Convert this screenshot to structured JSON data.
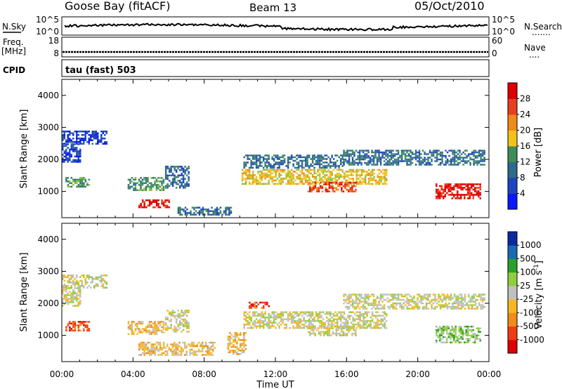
{
  "header": {
    "station": "Goose Bay (fitACF)",
    "beam": "Beam 13",
    "date": "05/Oct/2010"
  },
  "panels": {
    "nsky": {
      "label": "N.Sky",
      "ticks": [
        "10^5",
        "10^0"
      ]
    },
    "nsearch": {
      "label": "N.Search",
      "dots": "......."
    },
    "freq": {
      "label_line1": "Freq.",
      "label_line2": "[MHz]",
      "ticks": [
        "18",
        "8"
      ]
    },
    "nave": {
      "label": "Nave",
      "dots": "....",
      "ticks": [
        "60",
        "0"
      ]
    },
    "cpid": {
      "label": "CPID",
      "value": "tau (fast) 503"
    }
  },
  "colors": {
    "power": [
      "#0a18ff",
      "#1f44c0",
      "#2f6a8a",
      "#3d8c5a",
      "#8cc23a",
      "#f2c21a",
      "#f08a1a",
      "#e8401e",
      "#e00000"
    ],
    "velocity": [
      "#e00000",
      "#f03c14",
      "#f08c1a",
      "#f5b820",
      "#c0c0c0",
      "#8fcf3f",
      "#2aa02a",
      "#1a6ab2",
      "#0a2aa0"
    ],
    "gray": "#c0c0c0"
  },
  "chart_data": [
    {
      "type": "heatmap",
      "name": "power",
      "xlabel": "",
      "ylabel": "Slant Range [km]",
      "xlim": [
        0,
        24
      ],
      "ylim": [
        180,
        4500
      ],
      "yticks": [
        "1000",
        "2000",
        "3000",
        "4000"
      ],
      "colorbar": {
        "label": "Power [dB]",
        "ticks": [
          "4",
          "8",
          "12",
          "16",
          "20",
          "24",
          "28"
        ]
      },
      "regions": [
        {
          "t0": 0.0,
          "t1": 2.5,
          "r0": 2500,
          "r1": 2900,
          "level": 1
        },
        {
          "t0": 0.0,
          "t1": 1.0,
          "r0": 1900,
          "r1": 2500,
          "level": 1
        },
        {
          "t0": 0.2,
          "t1": 1.5,
          "r0": 1150,
          "r1": 1450,
          "level": 3
        },
        {
          "t0": 3.7,
          "t1": 5.7,
          "r0": 1050,
          "r1": 1450,
          "level": 3
        },
        {
          "t0": 4.3,
          "t1": 6.0,
          "r0": 500,
          "r1": 750,
          "level": 8
        },
        {
          "t0": 5.8,
          "t1": 7.1,
          "r0": 1100,
          "r1": 1800,
          "level": 2
        },
        {
          "t0": 10.1,
          "t1": 18.2,
          "r0": 1250,
          "r1": 1700,
          "level": 5
        },
        {
          "t0": 13.8,
          "t1": 16.5,
          "r0": 1000,
          "r1": 1300,
          "level": 7
        },
        {
          "t0": 10.2,
          "t1": 15.8,
          "r0": 1750,
          "r1": 2150,
          "level": 2
        },
        {
          "t0": 15.8,
          "t1": 23.7,
          "r0": 1850,
          "r1": 2300,
          "level": 2
        },
        {
          "t0": 21.0,
          "t1": 23.5,
          "r0": 800,
          "r1": 1250,
          "level": 8
        },
        {
          "t0": 6.5,
          "t1": 9.5,
          "r0": 280,
          "r1": 520,
          "level": 2
        }
      ]
    },
    {
      "type": "heatmap",
      "name": "velocity",
      "xlabel": "Time UT",
      "ylabel": "Slant Range [km]",
      "xlim": [
        0,
        24
      ],
      "ylim": [
        180,
        4500
      ],
      "xticks": [
        "00:00",
        "04:00",
        "08:00",
        "12:00",
        "16:00",
        "20:00",
        "00:00"
      ],
      "yticks": [
        "1000",
        "2000",
        "3000",
        "4000"
      ],
      "colorbar": {
        "label": "Velocity [m s",
        "label_exp": "-1",
        "label_end": "]",
        "ticks": [
          "1000",
          "500",
          "100",
          "25",
          "-25",
          "-100",
          "-500",
          "-1000"
        ]
      },
      "regions": [
        {
          "t0": 0.0,
          "t1": 2.5,
          "r0": 2500,
          "r1": 2900,
          "level": 4
        },
        {
          "t0": 0.0,
          "t1": 1.0,
          "r0": 1900,
          "r1": 2500,
          "level": 4
        },
        {
          "t0": 0.2,
          "t1": 1.5,
          "r0": 1150,
          "r1": 1450,
          "level": 1
        },
        {
          "t0": 3.7,
          "t1": 5.7,
          "r0": 1050,
          "r1": 1450,
          "level": 3
        },
        {
          "t0": 4.3,
          "t1": 8.6,
          "r0": 380,
          "r1": 800,
          "level": 3
        },
        {
          "t0": 5.8,
          "t1": 7.1,
          "r0": 1100,
          "r1": 1800,
          "level": 4
        },
        {
          "t0": 10.2,
          "t1": 18.2,
          "r0": 1250,
          "r1": 1750,
          "level": 4
        },
        {
          "t0": 13.8,
          "t1": 16.5,
          "r0": 1000,
          "r1": 1300,
          "level": 4
        },
        {
          "t0": 10.5,
          "t1": 11.6,
          "r0": 1850,
          "r1": 2050,
          "level": 1
        },
        {
          "t0": 15.8,
          "t1": 23.7,
          "r0": 1850,
          "r1": 2300,
          "level": 4
        },
        {
          "t0": 21.0,
          "t1": 23.5,
          "r0": 800,
          "r1": 1300,
          "level": 5
        },
        {
          "t0": 9.3,
          "t1": 10.3,
          "r0": 400,
          "r1": 1100,
          "level": 3
        }
      ]
    }
  ]
}
